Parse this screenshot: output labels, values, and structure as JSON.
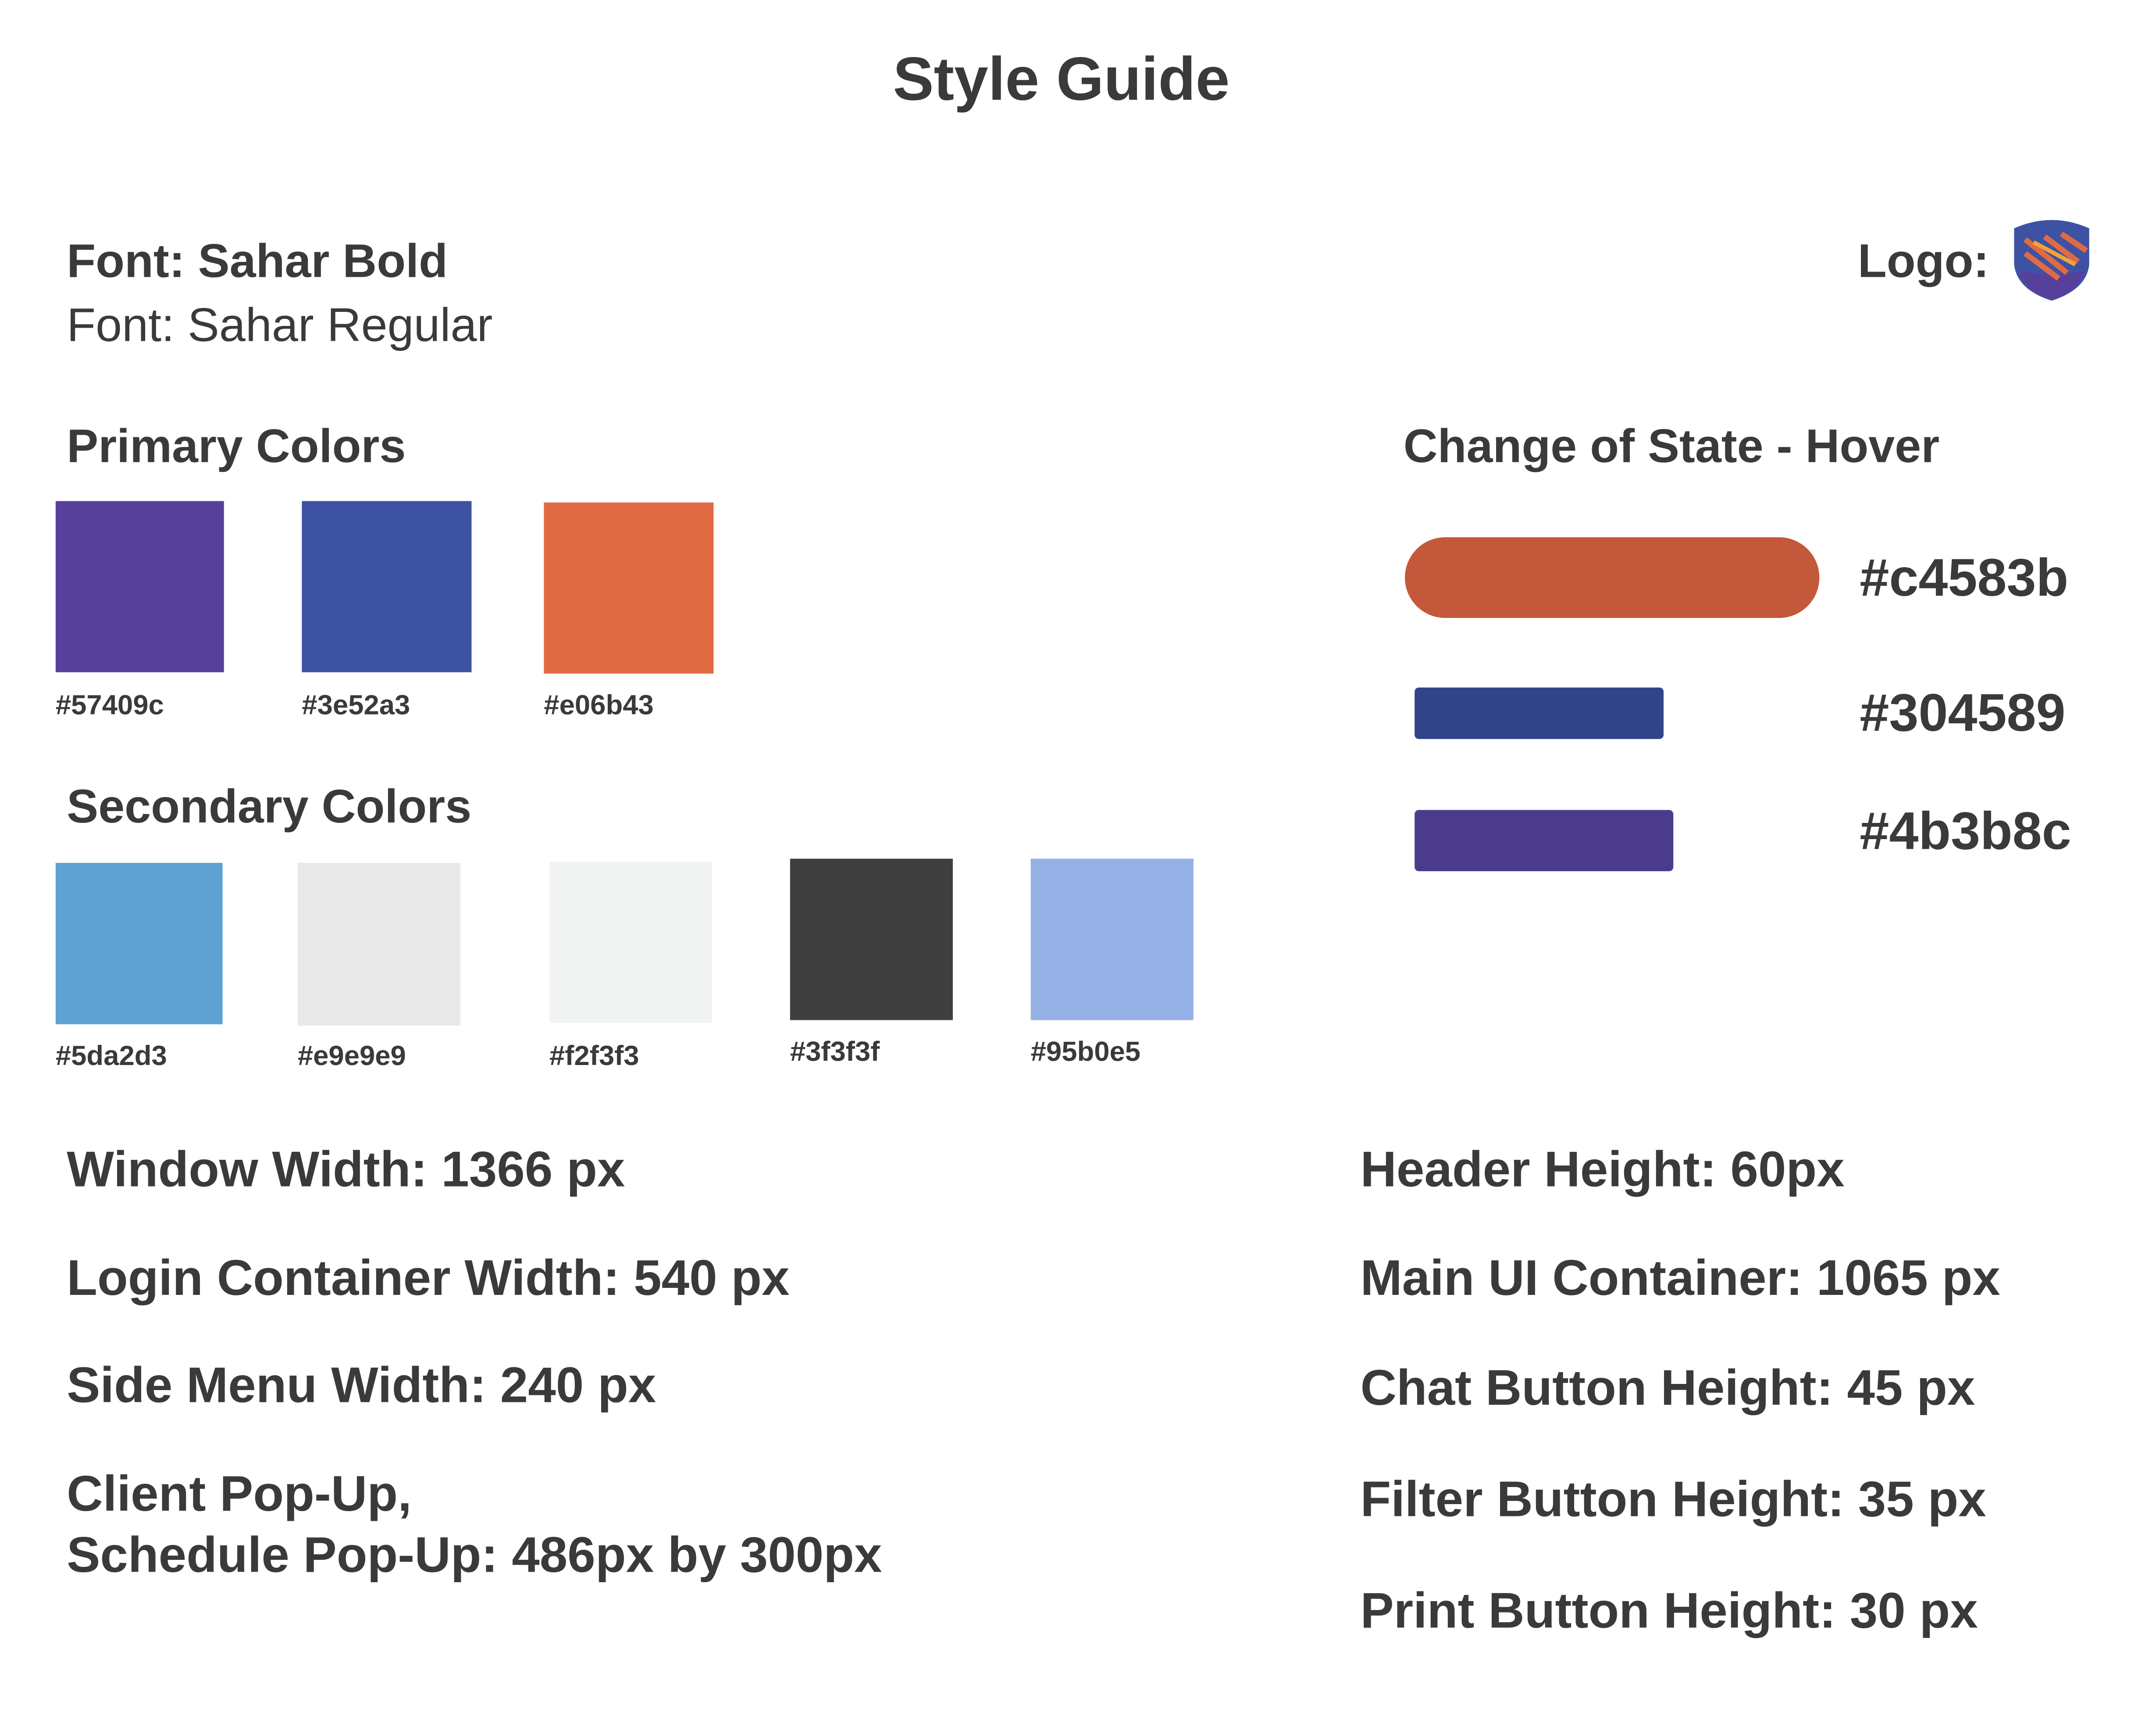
{
  "title": "Style Guide",
  "fonts": [
    "Font: Sahar Bold",
    "Font: Sahar Regular"
  ],
  "logo_label": "Logo:",
  "primary": {
    "heading": "Primary Colors",
    "colors": [
      "#57409c",
      "#3e52a3",
      "#e06b43"
    ]
  },
  "secondary": {
    "heading": "Secondary Colors",
    "colors": [
      "#5da2d3",
      "#e9e9e9",
      "#f2f3f3",
      "#3f3f3f",
      "#95b0e5"
    ]
  },
  "hover": {
    "heading": "Change of State - Hover",
    "colors": [
      "#c4583b",
      "#304589",
      "#4b3b8c"
    ]
  },
  "specs": {
    "left": [
      "Window Width: 1366 px",
      "Login Container Width: 540 px",
      "Side Menu Width: 240 px",
      "Client Pop-Up,",
      "Schedule Pop-Up: 486px by 300px"
    ],
    "right": [
      "Header Height: 60px",
      "Main UI Container: 1065 px",
      "Chat Button Height: 45 px",
      "Filter Button Height: 35 px",
      "Print Button Height: 30 px"
    ]
  }
}
